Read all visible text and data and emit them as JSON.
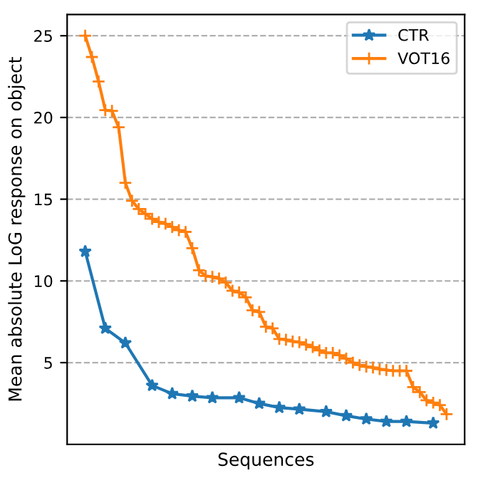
{
  "chart_data": {
    "type": "line",
    "xlabel": "Sequences",
    "ylabel": "Mean absolute LoG response on object",
    "categories": [
      null,
      null,
      null,
      null,
      null,
      null,
      null,
      null,
      null,
      null,
      null,
      null,
      null,
      null,
      null,
      null,
      null,
      null,
      null,
      null,
      null,
      null,
      null,
      null,
      null,
      null,
      null,
      null,
      null,
      null,
      null,
      null,
      null,
      null,
      null,
      null,
      null,
      null,
      null,
      null,
      null,
      null,
      null,
      null,
      null,
      null,
      null,
      null,
      null,
      null,
      null,
      null,
      null,
      null,
      null
    ],
    "ylim": [
      0,
      26.3
    ],
    "yticks": [
      5,
      10,
      15,
      20,
      25
    ],
    "tick_labels": "y",
    "grid": "y",
    "legend": "top right",
    "series": [
      {
        "name": "CTR",
        "color": "#1f77b4",
        "marker": "star",
        "values": [
          11.8,
          null,
          null,
          7.1,
          null,
          null,
          6.2,
          null,
          null,
          null,
          3.6,
          null,
          null,
          3.1,
          null,
          null,
          2.95,
          null,
          null,
          2.85,
          null,
          null,
          null,
          2.85,
          null,
          null,
          2.5,
          null,
          null,
          2.25,
          null,
          null,
          2.15,
          null,
          null,
          null,
          2.0,
          null,
          null,
          1.75,
          null,
          null,
          1.55,
          null,
          null,
          1.4,
          null,
          null,
          1.4,
          null,
          null,
          null,
          1.3,
          null,
          null
        ]
      },
      {
        "name": "VOT16",
        "color": "#ff7f0e",
        "marker": "cross",
        "values": [
          25.0,
          23.7,
          22.2,
          20.45,
          20.4,
          19.4,
          16.0,
          14.9,
          14.4,
          14.1,
          13.8,
          13.6,
          13.5,
          13.3,
          13.1,
          13.0,
          12.0,
          10.65,
          10.3,
          10.25,
          10.15,
          9.9,
          9.4,
          9.3,
          9.0,
          8.2,
          8.1,
          7.2,
          7.1,
          6.45,
          6.4,
          6.3,
          6.25,
          6.1,
          5.95,
          5.75,
          5.6,
          5.6,
          5.45,
          5.25,
          5.0,
          4.85,
          4.75,
          4.7,
          4.6,
          4.55,
          4.5,
          4.5,
          4.5,
          3.5,
          3.2,
          2.7,
          2.55,
          2.4,
          1.85
        ]
      }
    ]
  }
}
